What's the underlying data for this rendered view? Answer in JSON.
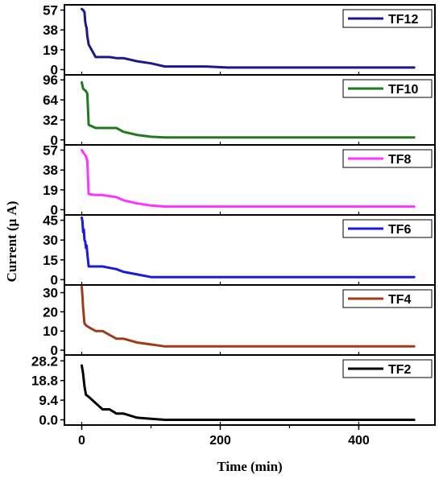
{
  "chart_data": {
    "type": "line",
    "xlabel": "Time (min)",
    "ylabel": "Current (μ A)",
    "xlim": [
      -25,
      510
    ],
    "x_ticks": [
      0,
      200,
      400
    ],
    "x_tick_labels": [
      "0",
      "200",
      "400"
    ],
    "panels": [
      {
        "series": {
          "name": "TF12",
          "color": "#1a1a8c"
        },
        "ylim": [
          -5,
          62
        ],
        "y_ticks": [
          0,
          19,
          38,
          57
        ],
        "y_tick_labels": [
          "0",
          "19",
          "38",
          "57"
        ],
        "x": [
          0,
          2,
          4,
          5,
          6,
          7,
          8,
          10,
          20,
          30,
          40,
          50,
          60,
          80,
          100,
          120,
          180,
          210,
          300,
          400,
          480
        ],
        "y": [
          58,
          57,
          55,
          46,
          42,
          40,
          32,
          24,
          12,
          12,
          12,
          11,
          11,
          8,
          6,
          3,
          3,
          2,
          2,
          2,
          2
        ]
      },
      {
        "series": {
          "name": "TF10",
          "color": "#1f7a1f"
        },
        "ylim": [
          -8,
          104
        ],
        "y_ticks": [
          0,
          32,
          64,
          96
        ],
        "y_tick_labels": [
          "0",
          "32",
          "64",
          "96"
        ],
        "x": [
          0,
          2,
          4,
          6,
          8,
          10,
          20,
          30,
          40,
          50,
          60,
          80,
          100,
          120,
          200,
          300,
          480
        ],
        "y": [
          92,
          82,
          80,
          78,
          74,
          24,
          19,
          19,
          19,
          19,
          13,
          8,
          5,
          4,
          4,
          4,
          4
        ]
      },
      {
        "series": {
          "name": "TF8",
          "color": "#ff33ff"
        },
        "ylim": [
          -5,
          62
        ],
        "y_ticks": [
          0,
          19,
          38,
          57
        ],
        "y_tick_labels": [
          "0",
          "19",
          "38",
          "57"
        ],
        "x": [
          0,
          2,
          4,
          6,
          8,
          10,
          20,
          30,
          40,
          50,
          60,
          80,
          100,
          120,
          200,
          300,
          480
        ],
        "y": [
          57,
          55,
          53,
          51,
          47,
          15,
          14,
          14,
          13,
          12,
          9,
          6,
          4,
          3,
          3,
          3,
          3
        ]
      },
      {
        "series": {
          "name": "TF6",
          "color": "#1a1adb"
        },
        "ylim": [
          -4,
          49
        ],
        "y_ticks": [
          0,
          15,
          30,
          45
        ],
        "y_tick_labels": [
          "0",
          "15",
          "30",
          "45"
        ],
        "x": [
          0,
          1,
          2,
          3,
          4,
          5,
          6,
          7,
          8,
          10,
          20,
          30,
          40,
          50,
          60,
          80,
          100,
          120,
          200,
          300,
          480
        ],
        "y": [
          47,
          44,
          36,
          38,
          30,
          29,
          24,
          26,
          20,
          10,
          10,
          10,
          9,
          8,
          6,
          4,
          2,
          2,
          2,
          2,
          2
        ]
      },
      {
        "series": {
          "name": "TF4",
          "color": "#a03a1a"
        },
        "ylim": [
          -2.5,
          34
        ],
        "y_ticks": [
          0,
          10,
          20,
          30
        ],
        "y_tick_labels": [
          "0",
          "10",
          "20",
          "30"
        ],
        "x": [
          0,
          1,
          2,
          4,
          6,
          10,
          20,
          30,
          40,
          50,
          60,
          80,
          100,
          120,
          200,
          300,
          480
        ],
        "y": [
          33,
          28,
          22,
          14,
          13,
          12,
          10,
          10,
          8,
          6,
          6,
          4,
          3,
          2,
          2,
          2,
          2
        ]
      },
      {
        "series": {
          "name": "TF2",
          "color": "#000000"
        },
        "ylim": [
          -2.5,
          31
        ],
        "y_ticks": [
          0,
          9.4,
          18.8,
          28.2
        ],
        "y_tick_labels": [
          "0.0",
          "9.4",
          "18.8",
          "28.2"
        ],
        "x": [
          0,
          1,
          2,
          4,
          5,
          6,
          10,
          20,
          30,
          40,
          50,
          60,
          80,
          100,
          120,
          200,
          300,
          480
        ],
        "y": [
          26,
          24,
          22,
          16,
          14,
          12,
          11,
          8,
          5,
          5,
          3,
          3,
          1,
          0.5,
          0,
          0,
          0,
          0
        ]
      }
    ]
  }
}
